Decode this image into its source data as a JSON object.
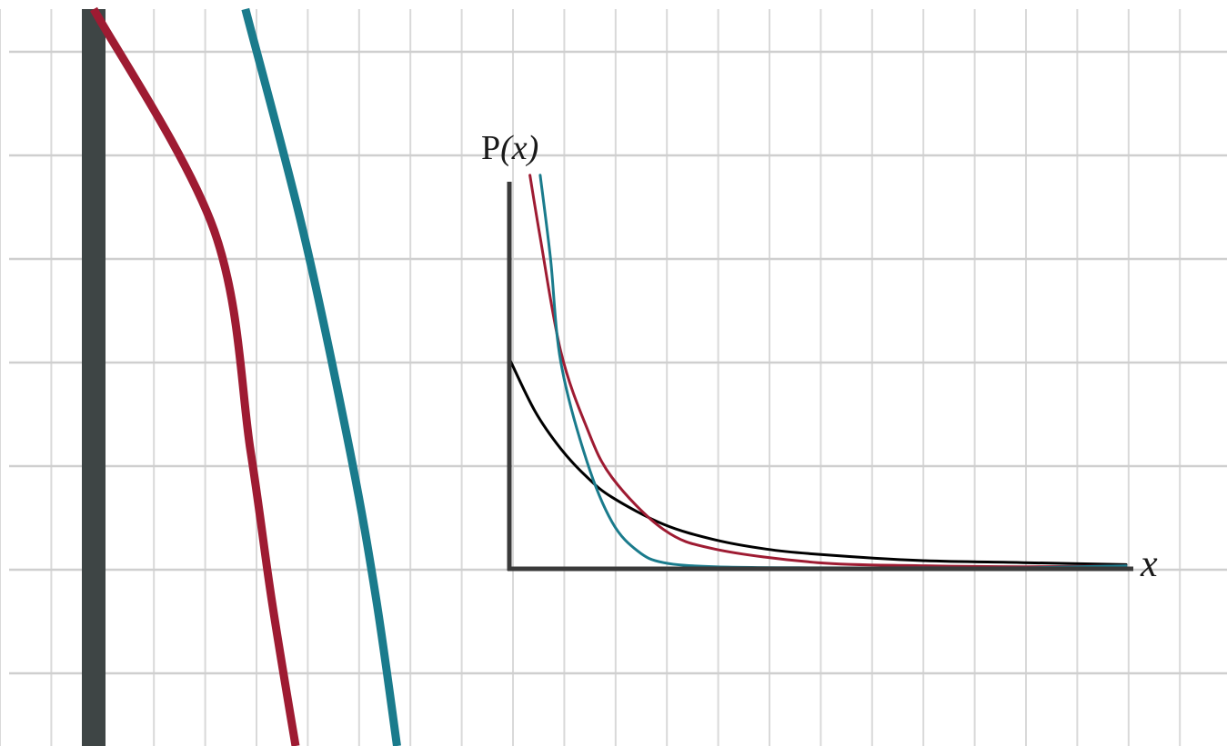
{
  "chart_data": [
    {
      "type": "line",
      "title": "",
      "ylabel_prefix": "P",
      "ylabel_var": "(x)",
      "xlabel": "x",
      "grid": true,
      "legend": "none",
      "series": [
        {
          "color": "#000000",
          "x": [
            0.0,
            0.25,
            0.5,
            0.75,
            1.0,
            1.5,
            2.0,
            2.5,
            3.0,
            4.0,
            5.0,
            6.0
          ],
          "y": [
            2.03,
            1.52,
            1.16,
            0.89,
            0.69,
            0.43,
            0.28,
            0.19,
            0.14,
            0.08,
            0.06,
            0.04
          ]
        },
        {
          "color": "#9e1b32",
          "x": [
            0.2,
            0.3,
            0.5,
            0.75,
            1.0,
            1.5,
            2.0,
            3.0,
            4.0,
            5.0,
            6.0
          ],
          "y": [
            3.8,
            3.2,
            2.1,
            1.37,
            0.88,
            0.38,
            0.19,
            0.06,
            0.03,
            0.02,
            0.03
          ]
        },
        {
          "color": "#1a7b8c",
          "x": [
            0.3,
            0.4,
            0.5,
            0.75,
            1.0,
            1.25,
            1.5,
            2.0,
            3.0,
            4.0,
            5.0,
            6.0
          ],
          "y": [
            3.8,
            3.0,
            2.0,
            1.05,
            0.45,
            0.17,
            0.06,
            0.02,
            0.01,
            0.01,
            0.01,
            0.03
          ]
        }
      ]
    },
    {
      "type": "line",
      "title": "",
      "grid": true,
      "legend": "none",
      "series": [
        {
          "color": "#3e4545",
          "x": [
            0.0,
            0.0
          ],
          "y": [
            0.0,
            1.0
          ]
        },
        {
          "color": "#9e1b32",
          "x": [
            0.193,
            0.17,
            0.15,
            0.115,
            0.0
          ],
          "y": [
            0.0,
            0.2,
            0.4,
            0.7,
            1.0
          ]
        },
        {
          "color": "#1a7b8c",
          "x": [
            0.29,
            0.27,
            0.245,
            0.2,
            0.145
          ],
          "y": [
            0.0,
            0.2,
            0.4,
            0.7,
            1.0
          ]
        }
      ]
    }
  ]
}
